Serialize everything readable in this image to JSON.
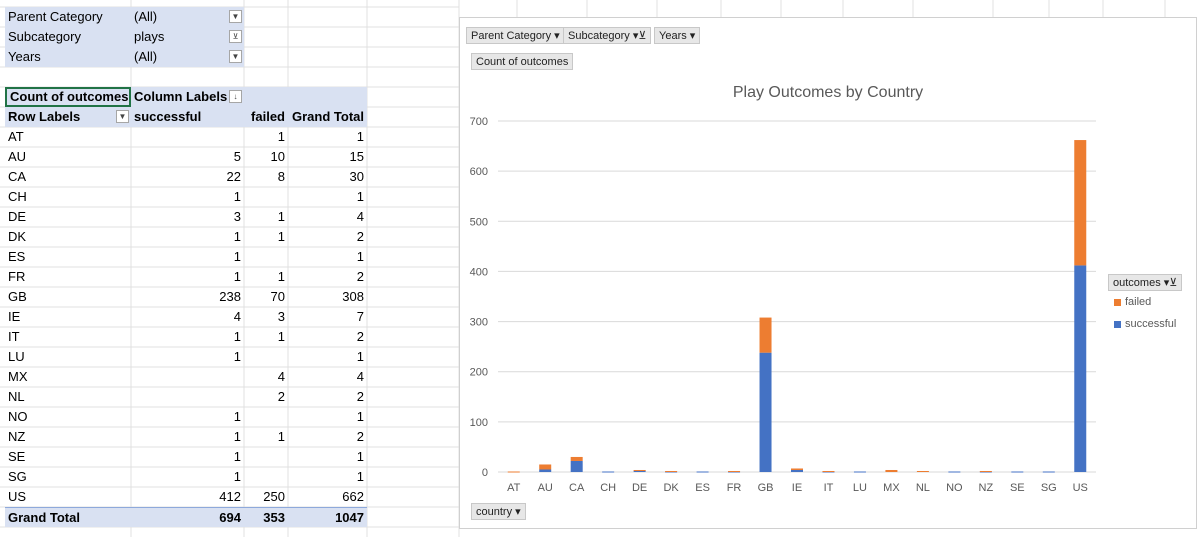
{
  "filters": [
    {
      "label": "Parent Category",
      "value": "(All)"
    },
    {
      "label": "Subcategory",
      "value": "plays"
    },
    {
      "label": "Years",
      "value": "(All)"
    }
  ],
  "pivot": {
    "value_label": "Count of outcomes",
    "column_labels": "Column Labels",
    "row_labels": "Row Labels",
    "columns": [
      "successful",
      "failed",
      "Grand Total"
    ],
    "rows": [
      {
        "label": "AT",
        "successful": "",
        "failed": "1",
        "total": "1"
      },
      {
        "label": "AU",
        "successful": "5",
        "failed": "10",
        "total": "15"
      },
      {
        "label": "CA",
        "successful": "22",
        "failed": "8",
        "total": "30"
      },
      {
        "label": "CH",
        "successful": "1",
        "failed": "",
        "total": "1"
      },
      {
        "label": "DE",
        "successful": "3",
        "failed": "1",
        "total": "4"
      },
      {
        "label": "DK",
        "successful": "1",
        "failed": "1",
        "total": "2"
      },
      {
        "label": "ES",
        "successful": "1",
        "failed": "",
        "total": "1"
      },
      {
        "label": "FR",
        "successful": "1",
        "failed": "1",
        "total": "2"
      },
      {
        "label": "GB",
        "successful": "238",
        "failed": "70",
        "total": "308"
      },
      {
        "label": "IE",
        "successful": "4",
        "failed": "3",
        "total": "7"
      },
      {
        "label": "IT",
        "successful": "1",
        "failed": "1",
        "total": "2"
      },
      {
        "label": "LU",
        "successful": "1",
        "failed": "",
        "total": "1"
      },
      {
        "label": "MX",
        "successful": "",
        "failed": "4",
        "total": "4"
      },
      {
        "label": "NL",
        "successful": "",
        "failed": "2",
        "total": "2"
      },
      {
        "label": "NO",
        "successful": "1",
        "failed": "",
        "total": "1"
      },
      {
        "label": "NZ",
        "successful": "1",
        "failed": "1",
        "total": "2"
      },
      {
        "label": "SE",
        "successful": "1",
        "failed": "",
        "total": "1"
      },
      {
        "label": "SG",
        "successful": "1",
        "failed": "",
        "total": "1"
      },
      {
        "label": "US",
        "successful": "412",
        "failed": "250",
        "total": "662"
      }
    ],
    "grand_total": {
      "label": "Grand Total",
      "successful": "694",
      "failed": "353",
      "total": "1047"
    }
  },
  "chart": {
    "filter_buttons": [
      "Parent Category",
      "Subcategory",
      "Years"
    ],
    "value_button": "Count of outcomes",
    "axis_button": "country",
    "legend_title": "outcomes"
  },
  "chart_data": {
    "type": "bar",
    "stacked": true,
    "title": "Play Outcomes by Country",
    "categories": [
      "AT",
      "AU",
      "CA",
      "CH",
      "DE",
      "DK",
      "ES",
      "FR",
      "GB",
      "IE",
      "IT",
      "LU",
      "MX",
      "NL",
      "NO",
      "NZ",
      "SE",
      "SG",
      "US"
    ],
    "series": [
      {
        "name": "successful",
        "color": "#4472c4",
        "values": [
          0,
          5,
          22,
          1,
          3,
          1,
          1,
          1,
          238,
          4,
          1,
          1,
          0,
          0,
          1,
          1,
          1,
          1,
          412
        ]
      },
      {
        "name": "failed",
        "color": "#ed7d31",
        "values": [
          1,
          10,
          8,
          0,
          1,
          1,
          0,
          1,
          70,
          3,
          1,
          0,
          4,
          2,
          0,
          1,
          0,
          0,
          250
        ]
      }
    ],
    "yticks": [
      0,
      100,
      200,
      300,
      400,
      500,
      600,
      700
    ],
    "ylim": [
      0,
      700
    ],
    "legend": "right",
    "grid": true
  }
}
